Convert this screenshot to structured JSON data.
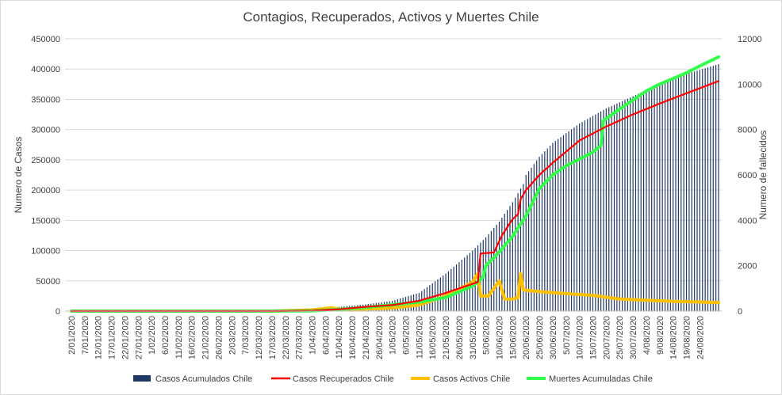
{
  "chart_data": {
    "type": "bar",
    "title": "Contagios, Recuperados, Activos y Muertes Chile",
    "ylabel": "Numero  de Casos",
    "y2label": "Numero  de fallecidos",
    "ylim": [
      0,
      450000
    ],
    "y2lim": [
      0,
      12000
    ],
    "y_ticks": [
      0,
      50000,
      100000,
      150000,
      200000,
      250000,
      300000,
      350000,
      400000,
      450000
    ],
    "y_tick_labels": [
      "0",
      "50000",
      "100000",
      "150000",
      "200000",
      "250000",
      "300000",
      "350000",
      "400000",
      "450000"
    ],
    "y2_ticks": [
      0,
      2000,
      4000,
      6000,
      8000,
      10000,
      12000
    ],
    "y2_tick_labels": [
      "0",
      "2000",
      "4000",
      "6000",
      "8000",
      "10000",
      "12000"
    ],
    "x_range": [
      "2/01/2020",
      "31/08/2020"
    ],
    "x_tick_labels": [
      "2/01/2020",
      "7/01/2020",
      "12/01/2020",
      "17/01/2020",
      "22/01/2020",
      "27/01/2020",
      "1/02/2020",
      "6/02/2020",
      "11/02/2020",
      "16/02/2020",
      "21/02/2020",
      "26/02/2020",
      "2/03/2020",
      "7/03/2020",
      "12/03/2020",
      "17/03/2020",
      "22/03/2020",
      "27/03/2020",
      "1/04/2020",
      "6/04/2020",
      "11/04/2020",
      "16/04/2020",
      "21/04/2020",
      "26/04/2020",
      "1/05/2020",
      "6/05/2020",
      "11/05/2020",
      "16/05/2020",
      "21/05/2020",
      "26/05/2020",
      "31/05/2020",
      "5/06/2020",
      "10/06/2020",
      "15/06/2020",
      "20/06/2020",
      "25/06/2020",
      "30/06/2020",
      "5/07/2020",
      "10/07/2020",
      "15/07/2020",
      "20/07/2020",
      "25/07/2020",
      "30/07/2020",
      "4/08/2020",
      "9/08/2020",
      "14/08/2020",
      "19/08/2020",
      "24/08/2020"
    ],
    "grid": "horizontal",
    "legend_position": "bottom",
    "series": [
      {
        "name": "Casos Acumulados Chile",
        "type": "bar",
        "axis": "left",
        "color": "#203864",
        "x": [
          "3/03/2020",
          "17/03/2020",
          "1/04/2020",
          "11/04/2020",
          "21/04/2020",
          "1/05/2020",
          "11/05/2020",
          "21/05/2020",
          "31/05/2020",
          "5/06/2020",
          "10/06/2020",
          "15/06/2020",
          "19/06/2020",
          "20/06/2020",
          "25/06/2020",
          "30/06/2020",
          "10/07/2020",
          "20/07/2020",
          "30/07/2020",
          "9/08/2020",
          "19/08/2020",
          "31/08/2020"
        ],
        "y": [
          1,
          200,
          3000,
          7000,
          11000,
          17000,
          30000,
          62000,
          100000,
          122000,
          148000,
          180000,
          210000,
          225000,
          255000,
          278000,
          310000,
          335000,
          355000,
          375000,
          392000,
          408000
        ]
      },
      {
        "name": "Casos Recuperados Chile",
        "type": "line",
        "axis": "left",
        "color": "#ff0000",
        "x": [
          "2/01/2020",
          "17/03/2020",
          "1/04/2020",
          "11/04/2020",
          "21/04/2020",
          "1/05/2020",
          "11/05/2020",
          "21/05/2020",
          "31/05/2020",
          "2/06/2020",
          "3/06/2020",
          "8/06/2020",
          "11/06/2020",
          "15/06/2020",
          "17/06/2020",
          "18/06/2020",
          "20/06/2020",
          "25/06/2020",
          "30/06/2020",
          "10/07/2020",
          "20/07/2020",
          "30/07/2020",
          "9/08/2020",
          "19/08/2020",
          "31/08/2020"
        ],
        "y": [
          0,
          0,
          700,
          3000,
          7000,
          10000,
          17000,
          30000,
          45000,
          48000,
          95000,
          97000,
          125000,
          152000,
          160000,
          185000,
          200000,
          225000,
          245000,
          282000,
          305000,
          325000,
          343000,
          360000,
          380000
        ]
      },
      {
        "name": "Casos Activos Chile",
        "type": "line",
        "axis": "left",
        "color": "#ffc000",
        "x": [
          "2/01/2020",
          "17/03/2020",
          "1/04/2020",
          "8/04/2020",
          "11/04/2020",
          "21/04/2020",
          "1/05/2020",
          "11/05/2020",
          "21/05/2020",
          "31/05/2020",
          "2/06/2020",
          "3/06/2020",
          "6/06/2020",
          "10/06/2020",
          "12/06/2020",
          "15/06/2020",
          "17/06/2020",
          "18/06/2020",
          "19/06/2020",
          "25/06/2020",
          "5/07/2020",
          "15/07/2020",
          "25/07/2020",
          "4/08/2020",
          "14/08/2020",
          "24/08/2020",
          "31/08/2020"
        ],
        "y": [
          0,
          0,
          2000,
          5500,
          3500,
          3500,
          5000,
          10000,
          25000,
          48000,
          62000,
          25000,
          25000,
          50000,
          20000,
          20000,
          22000,
          62000,
          35000,
          32000,
          29000,
          26000,
          20000,
          18000,
          16000,
          15000,
          14000
        ]
      },
      {
        "name": "Muertes Acumuladas Chile",
        "type": "line",
        "axis": "right",
        "color": "#33ff4b",
        "x": [
          "2/01/2020",
          "17/03/2020",
          "1/04/2020",
          "11/04/2020",
          "21/04/2020",
          "1/05/2020",
          "11/05/2020",
          "21/05/2020",
          "31/05/2020",
          "4/06/2020",
          "5/06/2020",
          "10/06/2020",
          "15/06/2020",
          "20/06/2020",
          "25/06/2020",
          "30/06/2020",
          "5/07/2020",
          "10/07/2020",
          "15/07/2020",
          "18/07/2020",
          "19/07/2020",
          "25/07/2020",
          "30/07/2020",
          "4/08/2020",
          "9/08/2020",
          "14/08/2020",
          "19/08/2020",
          "24/08/2020",
          "31/08/2020"
        ],
        "y": [
          0,
          0,
          10,
          80,
          160,
          280,
          400,
          600,
          1100,
          1500,
          2000,
          2600,
          3300,
          4200,
          5400,
          6000,
          6400,
          6700,
          7000,
          7300,
          8400,
          8900,
          9300,
          9700,
          10000,
          10250,
          10500,
          10800,
          11200
        ]
      }
    ]
  }
}
